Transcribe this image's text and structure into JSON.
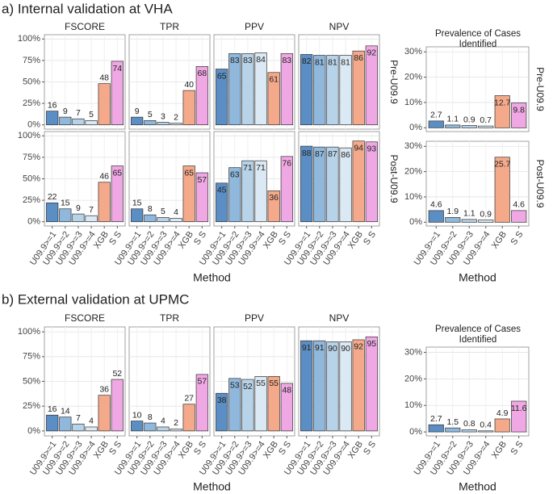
{
  "chart_data": [
    {
      "type": "bar",
      "title": "a) Internal validation at VHA",
      "xlabel": "Method",
      "categories": [
        "U09.9>=1",
        "U09.9>=2",
        "U09.9>=3",
        "U09.9>=4",
        "XGB",
        "S S"
      ],
      "colors": [
        "#5b8ec4",
        "#8fb8dc",
        "#b7d3ea",
        "#dbe9f4",
        "#f4a98a",
        "#f0a8e4"
      ],
      "columns": [
        "FSCORE",
        "TPR",
        "PPV",
        "NPV"
      ],
      "rows": [
        "Pre-U09.9",
        "Post-U09.9"
      ],
      "values": [
        [
          [
            16,
            9,
            7,
            5,
            48,
            74
          ],
          [
            9,
            5,
            3,
            2,
            40,
            68
          ],
          [
            65,
            83,
            83,
            84,
            61,
            83
          ],
          [
            82,
            81,
            81,
            81,
            86,
            92
          ]
        ],
        [
          [
            22,
            15,
            9,
            7,
            46,
            65
          ],
          [
            15,
            8,
            5,
            4,
            65,
            57
          ],
          [
            45,
            63,
            71,
            71,
            36,
            76
          ],
          [
            88,
            87,
            87,
            86,
            94,
            93
          ]
        ]
      ],
      "ylim": [
        -5,
        105
      ],
      "yticks": [
        {
          "value": 0,
          "label": "0%"
        },
        {
          "value": 25,
          "label": "25%"
        },
        {
          "value": 50,
          "label": "50%"
        },
        {
          "value": 75,
          "label": "75%"
        },
        {
          "value": 100,
          "label": "100%"
        }
      ],
      "grid": true
    },
    {
      "type": "bar",
      "title": "Prevalence of Cases Identified",
      "xlabel": "Method",
      "categories": [
        "U09.9>=1",
        "U09.9>=2",
        "U09.9>=3",
        "U09.9>=4",
        "XGB",
        "S S"
      ],
      "colors": [
        "#5b8ec4",
        "#8fb8dc",
        "#b7d3ea",
        "#dbe9f4",
        "#f4a98a",
        "#f0a8e4"
      ],
      "rows": [
        "Pre-U09.9",
        "Post-U09.9"
      ],
      "values": [
        [
          2.7,
          1.1,
          0.9,
          0.7,
          12.7,
          9.8
        ],
        [
          4.6,
          1.9,
          1.1,
          0.9,
          25.7,
          4.6
        ]
      ],
      "ylim": [
        -1.5,
        32
      ],
      "yticks": [
        {
          "value": 0,
          "label": "0%"
        },
        {
          "value": 10,
          "label": "10%"
        },
        {
          "value": 20,
          "label": "20%"
        },
        {
          "value": 30,
          "label": "30%"
        }
      ],
      "grid": true
    },
    {
      "type": "bar",
      "title": "b) External validation at UPMC",
      "xlabel": "Method",
      "categories": [
        "U09.9>=1",
        "U09.9>=2",
        "U09.9>=3",
        "U09.9>=4",
        "XGB",
        "S S"
      ],
      "colors": [
        "#5b8ec4",
        "#8fb8dc",
        "#b7d3ea",
        "#dbe9f4",
        "#f4a98a",
        "#f0a8e4"
      ],
      "columns": [
        "FSCORE",
        "TPR",
        "PPV",
        "NPV"
      ],
      "values": [
        [
          [
            16,
            14,
            7,
            4,
            36,
            52
          ],
          [
            10,
            8,
            4,
            2,
            27,
            57
          ],
          [
            38,
            53,
            52,
            55,
            55,
            48
          ],
          [
            91,
            91,
            90,
            90,
            92,
            95
          ]
        ]
      ],
      "ylim": [
        -5,
        105
      ],
      "yticks": [
        {
          "value": 0,
          "label": "0%"
        },
        {
          "value": 25,
          "label": "25%"
        },
        {
          "value": 50,
          "label": "50%"
        },
        {
          "value": 75,
          "label": "75%"
        },
        {
          "value": 100,
          "label": "100%"
        }
      ],
      "grid": true
    },
    {
      "type": "bar",
      "title": "Prevalence of Cases Identified",
      "xlabel": "Method",
      "categories": [
        "U09.9>=1",
        "U09.9>=2",
        "U09.9>=3",
        "U09.9>=4",
        "XGB",
        "S S"
      ],
      "colors": [
        "#5b8ec4",
        "#8fb8dc",
        "#b7d3ea",
        "#dbe9f4",
        "#f4a98a",
        "#f0a8e4"
      ],
      "values": [
        [
          2.7,
          1.5,
          0.8,
          0.4,
          4.9,
          11.6
        ]
      ],
      "ylim": [
        -1.5,
        32
      ],
      "yticks": [
        {
          "value": 0,
          "label": "0%"
        },
        {
          "value": 10,
          "label": "10%"
        },
        {
          "value": 20,
          "label": "20%"
        },
        {
          "value": 30,
          "label": "30%"
        }
      ],
      "grid": true
    }
  ]
}
